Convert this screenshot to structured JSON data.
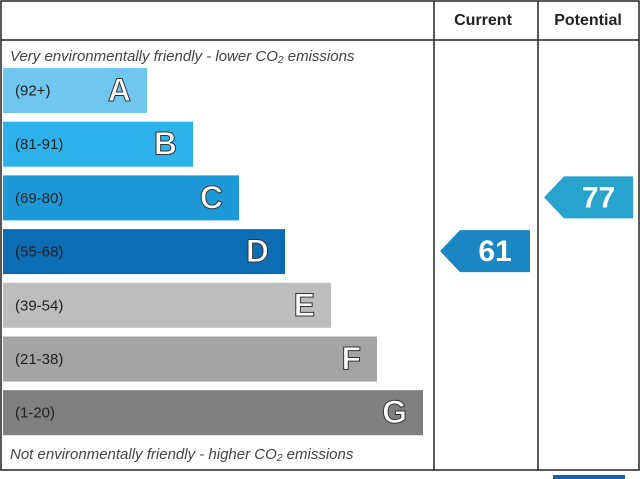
{
  "header": {
    "current": "Current",
    "potential": "Potential"
  },
  "top_note": "Very environmentally friendly - lower CO₂ emissions",
  "bottom_note": "Not environmentally friendly - higher CO₂ emissions",
  "bands": [
    {
      "range": "(92+)",
      "letter": "A",
      "color": "#6fc6ef"
    },
    {
      "range": "(81-91)",
      "letter": "B",
      "color": "#2cb1ea"
    },
    {
      "range": "(69-80)",
      "letter": "C",
      "color": "#1b9ad7"
    },
    {
      "range": "(55-68)",
      "letter": "D",
      "color": "#0c6db4"
    },
    {
      "range": "(39-54)",
      "letter": "E",
      "color": "#bdbdbd"
    },
    {
      "range": "(21-38)",
      "letter": "F",
      "color": "#a4a4a4"
    },
    {
      "range": "(1-20)",
      "letter": "G",
      "color": "#808080"
    }
  ],
  "current": {
    "value": 61,
    "color": "#1a86c3"
  },
  "potential": {
    "value": 77,
    "color": "#28a3cd"
  }
}
